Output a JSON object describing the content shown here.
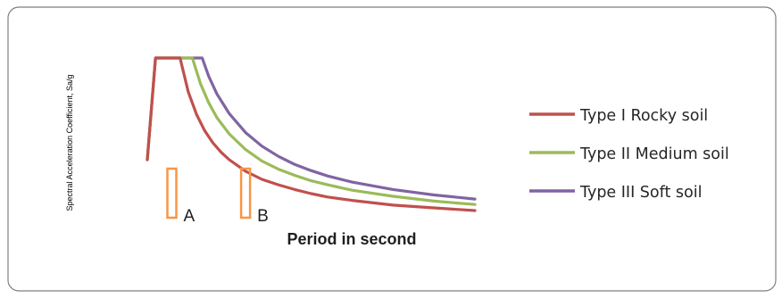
{
  "chart_data": {
    "type": "line",
    "title": "",
    "xlabel": "Period in second",
    "ylabel": "Spectral Acceleration Coefficient, Sa/g",
    "grid": false,
    "legend_position": "right",
    "x_ticks": [],
    "y_ticks": [],
    "colors": {
      "type1": "#c0504d",
      "type2": "#9bbb59",
      "type3": "#8064a2",
      "marker": "#f79646"
    },
    "series": [
      {
        "key": "type1",
        "name": "Type I Rocky soil",
        "color": "#c0504d",
        "x": [
          0.4,
          0.5,
          0.6,
          0.7,
          0.8,
          0.9,
          1.0,
          1.2,
          1.4,
          1.6,
          1.8,
          2.0,
          2.2,
          2.5,
          3.0,
          3.5,
          4.0
        ],
        "y": [
          2.5,
          2.0,
          1.67,
          1.43,
          1.25,
          1.11,
          1.0,
          0.83,
          0.71,
          0.63,
          0.56,
          0.5,
          0.45,
          0.4,
          0.33,
          0.29,
          0.25
        ]
      },
      {
        "key": "type2",
        "name": "Type II Medium soil",
        "color": "#9bbb59",
        "x": [
          0.55,
          0.65,
          0.75,
          0.85,
          1.0,
          1.2,
          1.4,
          1.6,
          1.8,
          2.0,
          2.2,
          2.5,
          3.0,
          3.5,
          4.0
        ],
        "y": [
          2.5,
          2.12,
          1.84,
          1.62,
          1.38,
          1.15,
          0.98,
          0.86,
          0.77,
          0.69,
          0.63,
          0.55,
          0.46,
          0.39,
          0.34
        ]
      },
      {
        "key": "type3",
        "name": "Type III Soft soil",
        "color": "#8064a2",
        "x": [
          0.67,
          0.75,
          0.85,
          1.0,
          1.2,
          1.4,
          1.6,
          1.8,
          2.0,
          2.2,
          2.5,
          3.0,
          3.5,
          4.0
        ],
        "y": [
          2.5,
          2.23,
          1.97,
          1.68,
          1.4,
          1.2,
          1.05,
          0.93,
          0.84,
          0.76,
          0.67,
          0.56,
          0.48,
          0.42
        ]
      }
    ],
    "shared_start": {
      "x": [
        0.0,
        0.1,
        0.4
      ],
      "y": [
        1.0,
        2.5,
        2.5
      ]
    },
    "xlim": [
      0,
      4
    ],
    "ylim": [
      0,
      2.5
    ],
    "annotations": [
      {
        "label": "A",
        "x": 0.3
      },
      {
        "label": "B",
        "x": 1.2
      }
    ]
  }
}
